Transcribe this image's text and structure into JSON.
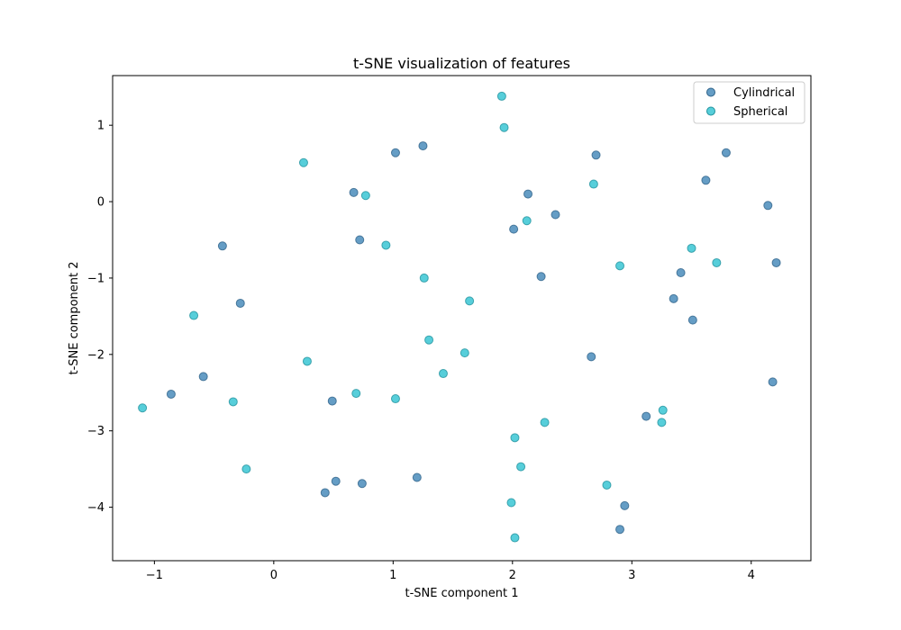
{
  "chart_data": {
    "type": "scatter",
    "title": "t-SNE visualization of features",
    "xlabel": "t-SNE component 1",
    "ylabel": "t-SNE component 2",
    "xlim": [
      -1.35,
      4.5
    ],
    "ylim": [
      -4.7,
      1.65
    ],
    "xticks": [
      -1,
      0,
      1,
      2,
      3,
      4
    ],
    "yticks": [
      1,
      0,
      -1,
      -2,
      -3,
      -4
    ],
    "xtick_labels": [
      "−1",
      "0",
      "1",
      "2",
      "3",
      "4"
    ],
    "ytick_labels": [
      "1",
      "0",
      "−1",
      "−2",
      "−3",
      "−4"
    ],
    "grid": false,
    "legend_position": "top-right",
    "series": [
      {
        "name": "Cylindrical",
        "color": "#3f84b7",
        "points": [
          [
            1.25,
            0.73
          ],
          [
            1.02,
            0.64
          ],
          [
            2.7,
            0.61
          ],
          [
            3.79,
            0.64
          ],
          [
            3.62,
            0.28
          ],
          [
            0.67,
            0.12
          ],
          [
            2.13,
            0.1
          ],
          [
            2.36,
            -0.17
          ],
          [
            2.01,
            -0.36
          ],
          [
            4.14,
            -0.05
          ],
          [
            -0.43,
            -0.58
          ],
          [
            0.72,
            -0.5
          ],
          [
            2.24,
            -0.98
          ],
          [
            3.41,
            -0.93
          ],
          [
            4.21,
            -0.8
          ],
          [
            -0.28,
            -1.33
          ],
          [
            3.35,
            -1.27
          ],
          [
            3.51,
            -1.55
          ],
          [
            2.66,
            -2.03
          ],
          [
            -0.59,
            -2.29
          ],
          [
            -0.86,
            -2.52
          ],
          [
            0.49,
            -2.61
          ],
          [
            4.18,
            -2.36
          ],
          [
            3.12,
            -2.81
          ],
          [
            0.52,
            -3.66
          ],
          [
            0.43,
            -3.81
          ],
          [
            0.74,
            -3.69
          ],
          [
            1.2,
            -3.61
          ],
          [
            2.94,
            -3.98
          ],
          [
            2.9,
            -4.29
          ]
        ]
      },
      {
        "name": "Spherical",
        "color": "#2dc2d1",
        "points": [
          [
            1.91,
            1.38
          ],
          [
            1.93,
            0.97
          ],
          [
            0.25,
            0.51
          ],
          [
            0.77,
            0.08
          ],
          [
            2.68,
            0.23
          ],
          [
            2.12,
            -0.25
          ],
          [
            0.94,
            -0.57
          ],
          [
            3.5,
            -0.61
          ],
          [
            3.71,
            -0.8
          ],
          [
            2.9,
            -0.84
          ],
          [
            1.26,
            -1.0
          ],
          [
            1.64,
            -1.3
          ],
          [
            -0.67,
            -1.49
          ],
          [
            1.3,
            -1.81
          ],
          [
            1.6,
            -1.98
          ],
          [
            0.28,
            -2.09
          ],
          [
            1.42,
            -2.25
          ],
          [
            0.69,
            -2.51
          ],
          [
            1.02,
            -2.58
          ],
          [
            -0.34,
            -2.62
          ],
          [
            -1.1,
            -2.7
          ],
          [
            3.26,
            -2.73
          ],
          [
            3.25,
            -2.89
          ],
          [
            2.27,
            -2.89
          ],
          [
            2.02,
            -3.09
          ],
          [
            2.07,
            -3.47
          ],
          [
            -0.23,
            -3.5
          ],
          [
            2.79,
            -3.71
          ],
          [
            1.99,
            -3.94
          ],
          [
            2.02,
            -4.4
          ]
        ]
      }
    ]
  }
}
